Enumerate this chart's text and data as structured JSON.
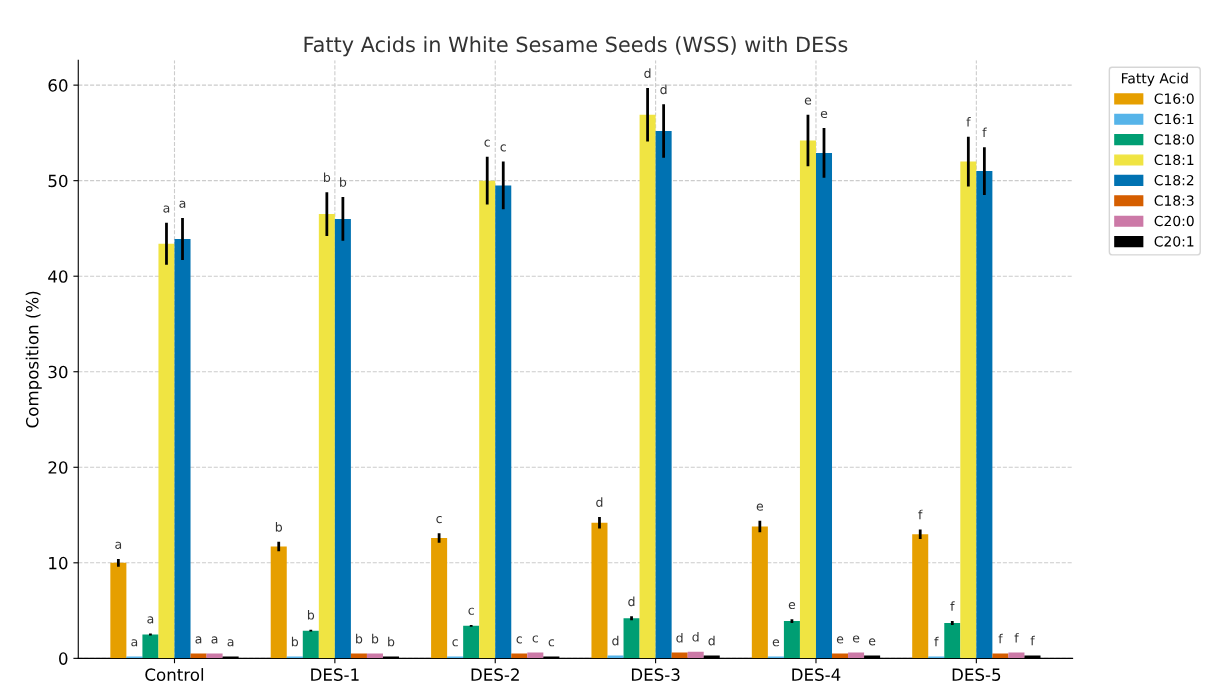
{
  "chart_data": {
    "type": "bar",
    "title": "Fatty Acids in White Sesame Seeds (WSS) with DESs",
    "ylabel": "Composition (%)",
    "legend_title": "Fatty Acid",
    "categories": [
      "Control",
      "DES-1",
      "DES-2",
      "DES-3",
      "DES-4",
      "DES-5"
    ],
    "series": [
      {
        "name": "C16:0",
        "color": "#e69f00",
        "values": [
          10.0,
          11.7,
          12.6,
          14.2,
          13.8,
          13.0
        ],
        "errors": [
          0.4,
          0.5,
          0.5,
          0.6,
          0.6,
          0.5
        ],
        "value_labels": [
          "a",
          "b",
          "c",
          "d",
          "e",
          "f"
        ]
      },
      {
        "name": "C16:1",
        "color": "#56b4e9",
        "values": [
          0.2,
          0.2,
          0.2,
          0.3,
          0.2,
          0.2
        ],
        "value_labels": [
          "a",
          "b",
          "c",
          "d",
          "e",
          "f"
        ]
      },
      {
        "name": "C18:0",
        "color": "#009e73",
        "values": [
          2.5,
          2.9,
          3.4,
          4.2,
          3.9,
          3.7
        ],
        "errors": [
          0.1,
          0.1,
          0.1,
          0.2,
          0.2,
          0.2
        ],
        "value_labels": [
          "a",
          "b",
          "c",
          "d",
          "e",
          "f"
        ]
      },
      {
        "name": "C18:1",
        "color": "#f0e442",
        "values": [
          43.4,
          46.5,
          50.0,
          56.9,
          54.2,
          52.0
        ],
        "errors": [
          2.2,
          2.3,
          2.5,
          2.8,
          2.7,
          2.6
        ],
        "value_labels": [
          "a",
          "b",
          "c",
          "d",
          "e",
          "f"
        ]
      },
      {
        "name": "C18:2",
        "color": "#0072b2",
        "values": [
          43.9,
          46.0,
          49.5,
          55.2,
          52.9,
          51.0
        ],
        "errors": [
          2.2,
          2.3,
          2.5,
          2.8,
          2.6,
          2.5
        ],
        "value_labels": [
          "a",
          "b",
          "c",
          "d",
          "e",
          "f"
        ]
      },
      {
        "name": "C18:3",
        "color": "#d55e00",
        "values": [
          0.5,
          0.5,
          0.5,
          0.6,
          0.5,
          0.5
        ],
        "value_labels": [
          "a",
          "b",
          "c",
          "d",
          "e",
          "f"
        ]
      },
      {
        "name": "C20:0",
        "color": "#cc79a7",
        "values": [
          0.5,
          0.5,
          0.6,
          0.7,
          0.6,
          0.6
        ],
        "value_labels": [
          "a",
          "b",
          "c",
          "d",
          "e",
          "f"
        ]
      },
      {
        "name": "C20:1",
        "color": "#000000",
        "values": [
          0.2,
          0.2,
          0.2,
          0.3,
          0.3,
          0.3
        ],
        "value_labels": [
          "a",
          "b",
          "c",
          "d",
          "e",
          "f"
        ]
      }
    ],
    "ylim": [
      0,
      62.6
    ],
    "yticks": [
      0,
      10,
      20,
      30,
      40,
      50,
      60
    ],
    "grid": true,
    "legend": "top right"
  }
}
